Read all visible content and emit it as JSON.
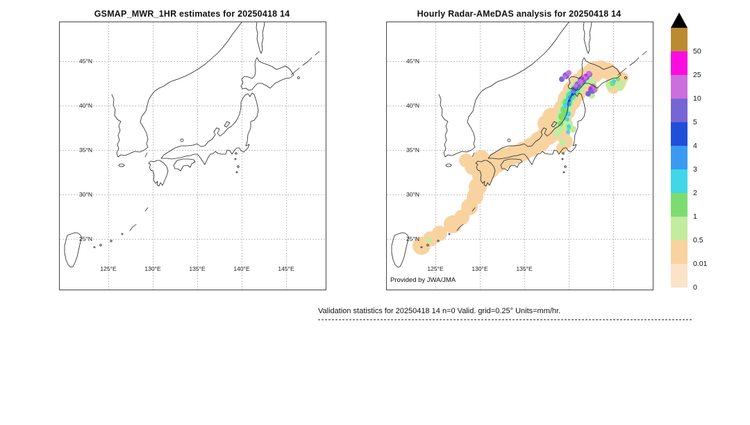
{
  "titles": {
    "left": "GSMAP_MWR_1HR estimates for 20250418 14",
    "right": "Hourly Radar-AMeDAS analysis for 20250418 14"
  },
  "left_panel": {
    "lat_ticks": [
      "45°N",
      "40°N",
      "35°N",
      "30°N",
      "25°N"
    ],
    "lon_ticks": [
      "125°E",
      "130°E",
      "135°E",
      "140°E",
      "145°E"
    ]
  },
  "right_panel": {
    "lat_ticks": [
      "45°N",
      "40°N",
      "35°N",
      "30°N",
      "25°N"
    ],
    "lon_ticks": [
      "125°E",
      "130°E",
      "135°E"
    ],
    "credit": "Provided by JWA/JMA"
  },
  "colorbar": {
    "tick_labels_bottom_to_top": [
      "0",
      "0.01",
      "0.5",
      "1",
      "2",
      "3",
      "4",
      "5",
      "10",
      "25",
      "50"
    ],
    "palette_bottom_to_top": [
      "#fbe3c8",
      "#f8d3a0",
      "#c2ec9e",
      "#7ddc6f",
      "#41d6e8",
      "#3a9af2",
      "#1f4fd8",
      "#7666d4",
      "#cb6fdc",
      "#fa0ce0",
      "#bb8b32"
    ],
    "overflow_marker_color": "#000000",
    "units": "mm/hr"
  },
  "caption": "Validation statistics for 20250418 14  n=0 Valid. grid=0.25° Units=mm/hr."
}
